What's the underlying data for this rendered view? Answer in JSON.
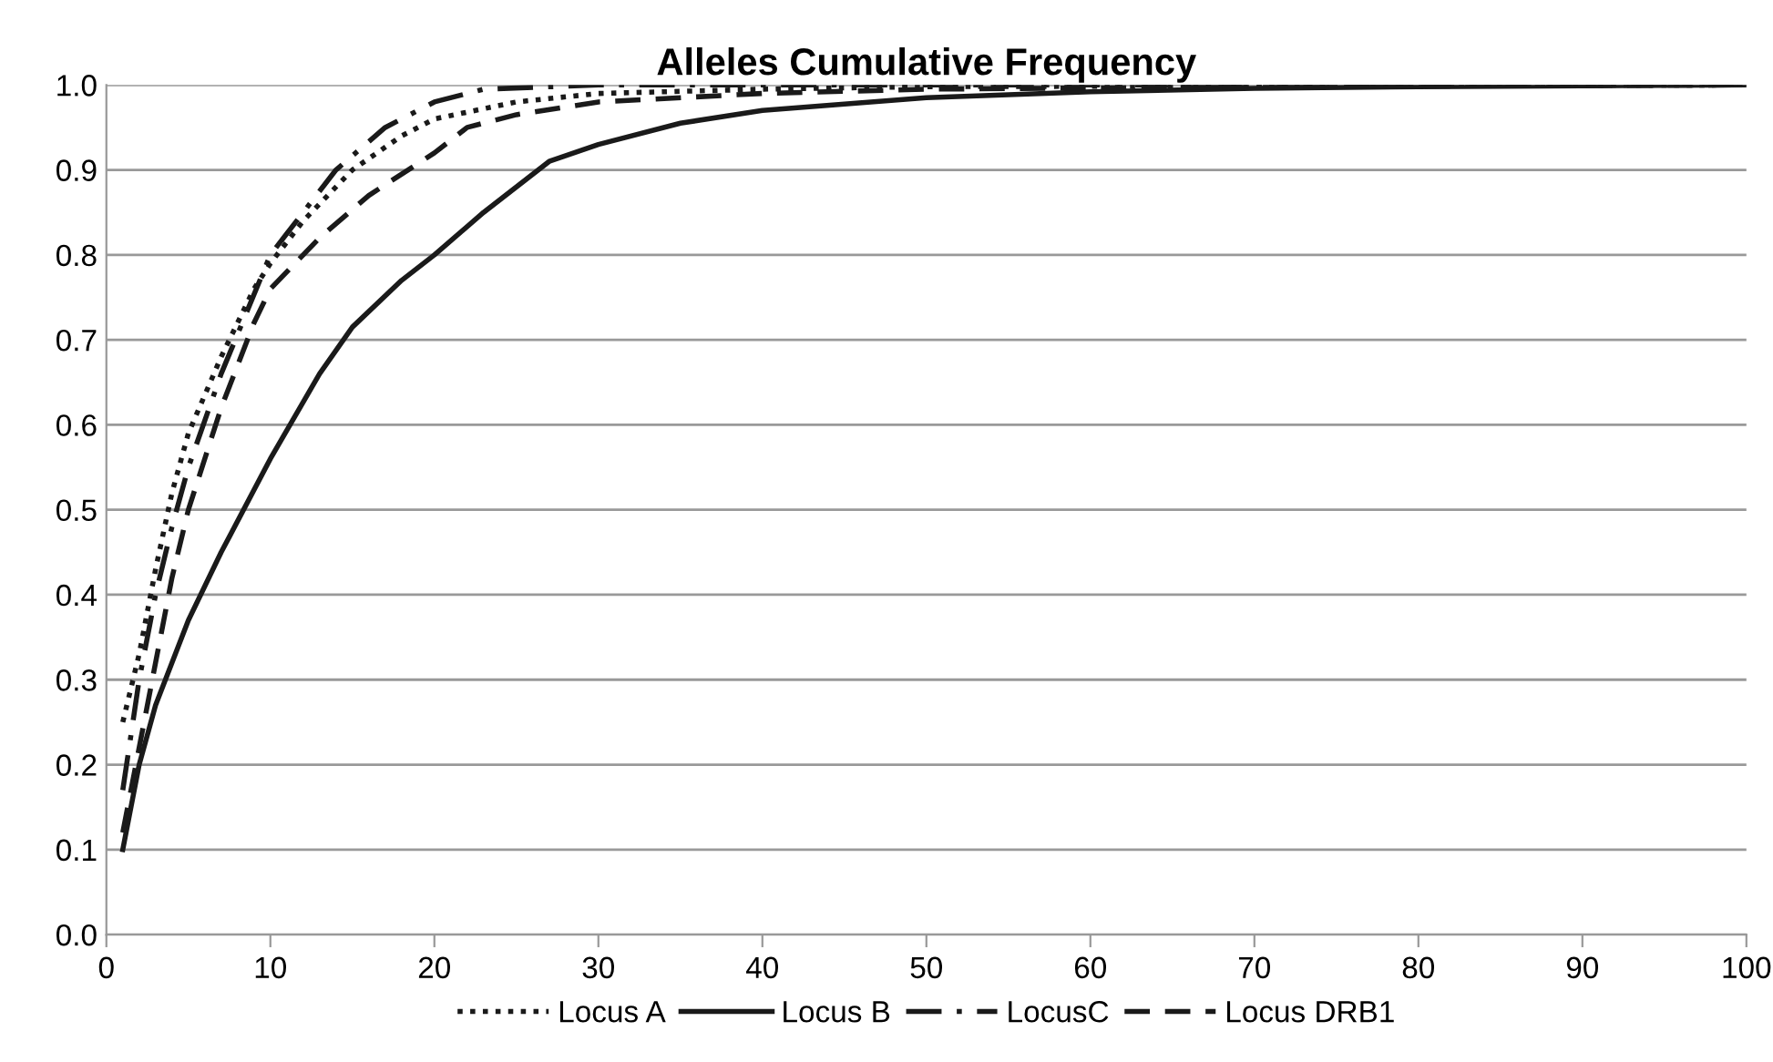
{
  "chart_data": {
    "type": "line",
    "title": "Alleles Cumulative Frequency",
    "xlim": [
      0,
      100
    ],
    "xticks": [
      0,
      10,
      20,
      30,
      40,
      50,
      60,
      70,
      80,
      90,
      100
    ],
    "ylim": [
      0,
      1
    ],
    "yticks": [
      {
        "value": 0,
        "label": "0.0"
      },
      {
        "value": 0.1,
        "label": "0.1"
      },
      {
        "value": 0.2,
        "label": "0.2"
      },
      {
        "value": 0.3,
        "label": "0.3"
      },
      {
        "value": 0.4,
        "label": "0.4"
      },
      {
        "value": 0.5,
        "label": "0.5"
      },
      {
        "value": 0.6,
        "label": "0.6"
      },
      {
        "value": 0.7,
        "label": "0.7"
      },
      {
        "value": 0.8,
        "label": "0.8"
      },
      {
        "value": 0.9,
        "label": "0.9"
      },
      {
        "value": 1,
        "label": "1.0"
      }
    ],
    "grid": "y",
    "legend": "bottom",
    "marker": "none",
    "series": [
      {
        "name": "Locus A",
        "color": "#1a1a1a",
        "line_style": "dotted",
        "x": [
          1,
          2,
          3,
          4,
          5,
          7,
          9,
          10,
          12,
          15,
          18,
          20,
          25,
          30,
          40,
          50,
          100
        ],
        "values": [
          0.25,
          0.33,
          0.43,
          0.52,
          0.59,
          0.68,
          0.76,
          0.79,
          0.84,
          0.9,
          0.94,
          0.96,
          0.98,
          0.99,
          0.995,
          0.998,
          1.0
        ]
      },
      {
        "name": "Locus B",
        "color": "#1a1a1a",
        "line_style": "solid",
        "x": [
          1,
          2,
          3,
          5,
          7,
          10,
          13,
          15,
          18,
          20,
          23,
          27,
          30,
          35,
          40,
          50,
          60,
          70,
          80,
          100
        ],
        "values": [
          0.1,
          0.2,
          0.27,
          0.37,
          0.45,
          0.56,
          0.66,
          0.715,
          0.77,
          0.8,
          0.85,
          0.91,
          0.93,
          0.955,
          0.97,
          0.985,
          0.992,
          0.996,
          0.998,
          1.0
        ]
      },
      {
        "name": "LocusC",
        "color": "#1a1a1a",
        "line_style": "dashdot",
        "x": [
          1,
          2,
          3,
          4,
          5,
          7,
          10,
          12,
          14,
          17,
          20,
          23,
          30,
          100
        ],
        "values": [
          0.17,
          0.3,
          0.4,
          0.48,
          0.55,
          0.66,
          0.8,
          0.85,
          0.9,
          0.95,
          0.98,
          0.995,
          1.0,
          1.0
        ]
      },
      {
        "name": "Locus DRB1",
        "color": "#1a1a1a",
        "line_style": "dashed",
        "x": [
          1,
          2,
          3,
          4,
          5,
          7,
          9,
          10,
          13,
          16,
          20,
          22,
          25,
          30,
          40,
          50,
          70,
          100
        ],
        "values": [
          0.12,
          0.22,
          0.32,
          0.42,
          0.5,
          0.62,
          0.72,
          0.76,
          0.82,
          0.87,
          0.92,
          0.95,
          0.965,
          0.98,
          0.99,
          0.995,
          0.998,
          1.0
        ]
      }
    ]
  }
}
